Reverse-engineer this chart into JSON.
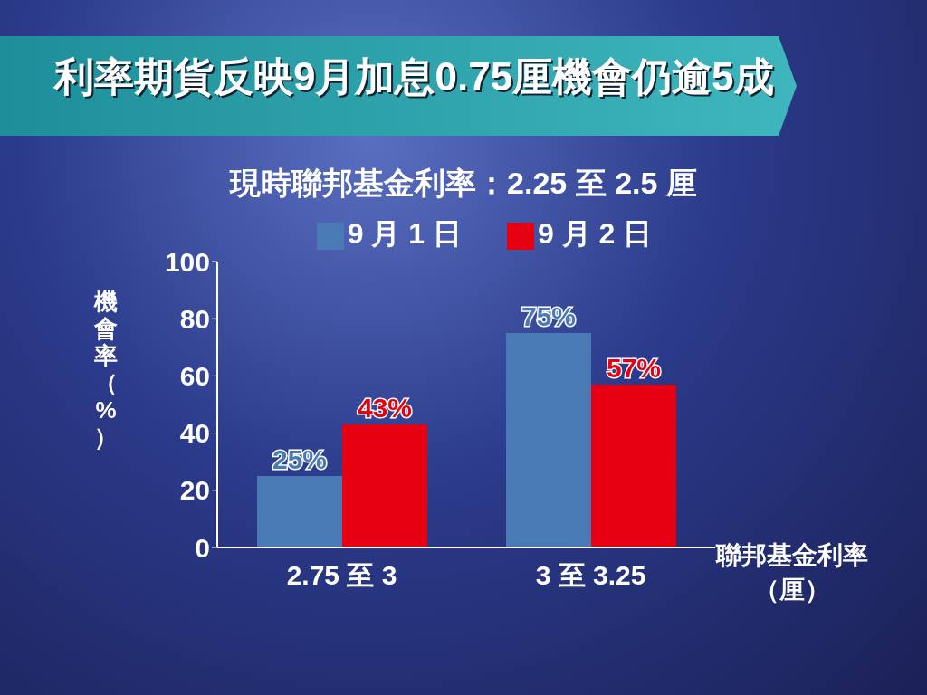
{
  "chart_data": {
    "type": "bar",
    "title": "利率期貨反映9月加息0.75厘機會仍逾5成",
    "subtitle": "現時聯邦基金利率：2.25 至 2.5 厘",
    "xlabel": "聯邦基金利率（厘）",
    "ylabel": "機會率（%）",
    "categories": [
      "2.75 至 3",
      "3 至 3.25"
    ],
    "series": [
      {
        "name": "9 月 1 日",
        "color": "#4a7ab5",
        "values": [
          25,
          75
        ],
        "value_labels": [
          "25%",
          "75%"
        ]
      },
      {
        "name": "9 月 2 日",
        "color": "#e60012",
        "values": [
          43,
          57
        ],
        "value_labels": [
          "43%",
          "57%"
        ]
      }
    ],
    "ylim": [
      0,
      100
    ],
    "yticks": [
      0,
      20,
      40,
      60,
      80,
      100
    ],
    "grid": false,
    "legend": "top"
  }
}
